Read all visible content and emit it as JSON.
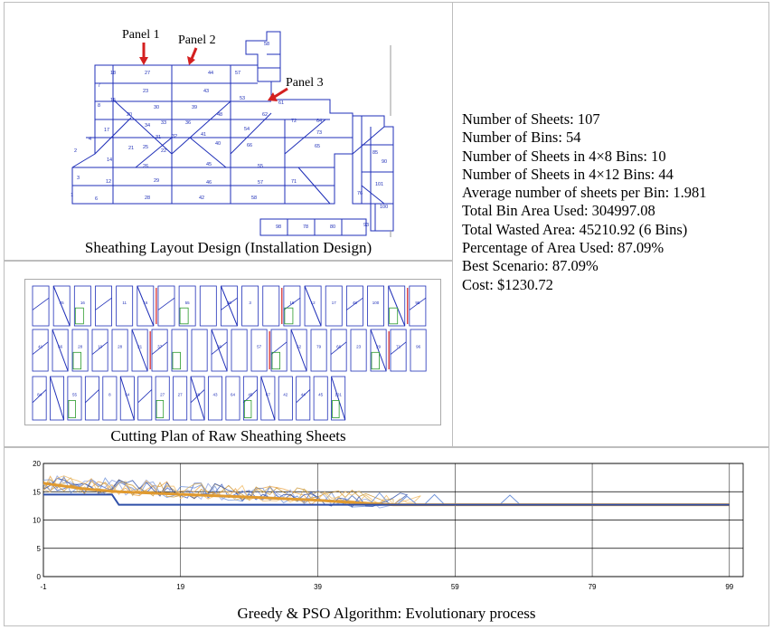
{
  "layout_panel": {
    "caption": "Sheathing Layout Design (Installation Design)",
    "annotations": [
      "Panel 1",
      "Panel 2",
      "Panel 3"
    ],
    "sheet_labels": [
      "18",
      "27",
      "44",
      "57",
      "58",
      "7",
      "23",
      "43",
      "53",
      "61",
      "15",
      "30",
      "39",
      "48",
      "62",
      "8",
      "20",
      "34",
      "33",
      "36",
      "72",
      "64",
      "17",
      "41",
      "73",
      "4",
      "31",
      "32",
      "40",
      "65",
      "2",
      "21",
      "25",
      "22",
      "54",
      "66",
      "14",
      "26",
      "45",
      "55",
      "3",
      "12",
      "29",
      "46",
      "57",
      "71",
      "1",
      "6",
      "28",
      "42",
      "58",
      "76",
      "90",
      "85",
      "101",
      "100",
      "93",
      "78",
      "80",
      "98"
    ]
  },
  "stats": {
    "lines": [
      "Number of Sheets: 107",
      "Number of Bins: 54",
      "Number of Sheets in 4×8 Bins: 10",
      "Number of Sheets in 4×12 Bins: 44",
      "Average number of sheets per Bin: 1.981",
      "Total Bin Area Used: 304997.08",
      "Total Wasted Area: 45210.92 (6 Bins)",
      "Percentage of Area Used: 87.09%",
      "Best Scenario: 87.09%",
      "Cost: $1230.72"
    ]
  },
  "cutting_panel": {
    "caption": "Cutting Plan of Raw Sheathing Sheets",
    "row1_labels": [
      "",
      "45",
      "16",
      "",
      "11",
      "16",
      "",
      "55",
      "",
      "30",
      "3",
      "",
      "16",
      "12",
      "17",
      "48",
      "100",
      "",
      "95"
    ],
    "row2_labels": [
      "41",
      "66",
      "28",
      "10",
      "28",
      "21",
      "37",
      "",
      "",
      "39",
      "",
      "57",
      "",
      "52",
      "79",
      "66",
      "23",
      "29",
      "71",
      "96"
    ],
    "row3_labels": [
      "84",
      "",
      "55",
      "",
      "8",
      "54",
      "",
      "27",
      "27",
      "28",
      "43",
      "64",
      "45",
      "67",
      "42",
      "44",
      "45",
      "101"
    ]
  },
  "chart_data": {
    "type": "line",
    "title": "",
    "caption": "Greedy & PSO Algorithm: Evolutionary process",
    "xlabel": "",
    "ylabel": "",
    "xlim": [
      -1,
      101
    ],
    "ylim": [
      0,
      20
    ],
    "x_ticks": [
      "-1",
      "19",
      "39",
      "59",
      "79",
      "99"
    ],
    "y_ticks": [
      "0",
      "5",
      "10",
      "15",
      "20"
    ],
    "grid": true,
    "legend": "none",
    "series_colors": [
      "#3a5bbf",
      "#e8a040",
      "#6a8fd8",
      "#c8902a",
      "#8aa0e0",
      "#d4b060",
      "#2f4fa8",
      "#f0b860"
    ],
    "best_series": {
      "name": "",
      "x": [
        -1,
        5,
        10,
        20,
        30,
        39,
        45,
        50,
        99
      ],
      "y": [
        16.5,
        15.5,
        15,
        14.5,
        14,
        13.5,
        13,
        12.7,
        12.7
      ]
    },
    "min_series": {
      "name": "",
      "x": [
        -1,
        9,
        10,
        39,
        99
      ],
      "y": [
        14.5,
        14.5,
        12.7,
        12.7,
        12.7
      ]
    }
  }
}
